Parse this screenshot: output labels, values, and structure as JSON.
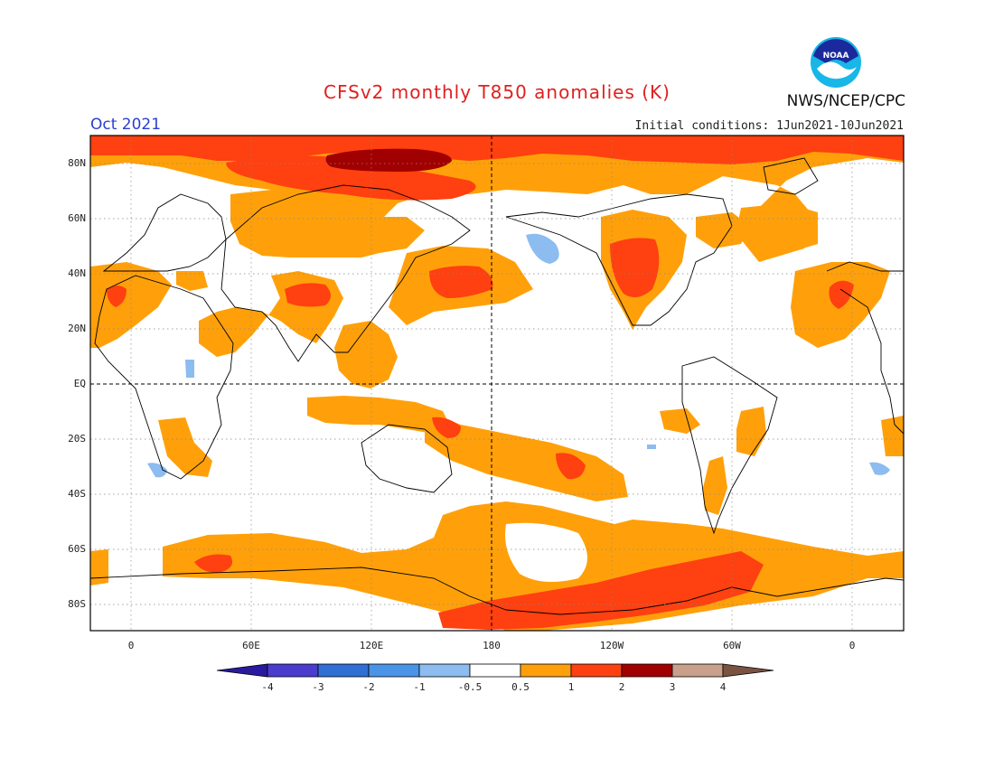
{
  "header": {
    "title": "CFSv2 monthly T850 anomalies (K)",
    "month": "Oct 2021",
    "initial_conditions": "Initial conditions: 1Jun2021-10Jun2021",
    "organization": "NWS/NCEP/CPC",
    "logo_text": "NOAA"
  },
  "axes": {
    "y_labels": [
      "80N",
      "60N",
      "40N",
      "20N",
      "EQ",
      "20S",
      "40S",
      "60S",
      "80S"
    ],
    "x_labels": [
      "0",
      "60E",
      "120E",
      "180",
      "120W",
      "60W",
      "0"
    ]
  },
  "colorbar": {
    "ticks": [
      "-4",
      "-3",
      "-2",
      "-1",
      "-0.5",
      "0.5",
      "1",
      "2",
      "3",
      "4"
    ],
    "colors": [
      "#2a1aa0",
      "#4a3ccf",
      "#2f6fd6",
      "#4a94e8",
      "#8cbcf0",
      "#ffffff",
      "#ffa00a",
      "#ff4010",
      "#a00000",
      "#c8a08c",
      "#7a5440"
    ]
  },
  "map_colors": {
    "warm1": "#ffa00a",
    "warm2": "#ff4010",
    "warm3": "#a00000",
    "cool1": "#8cbcf0"
  }
}
